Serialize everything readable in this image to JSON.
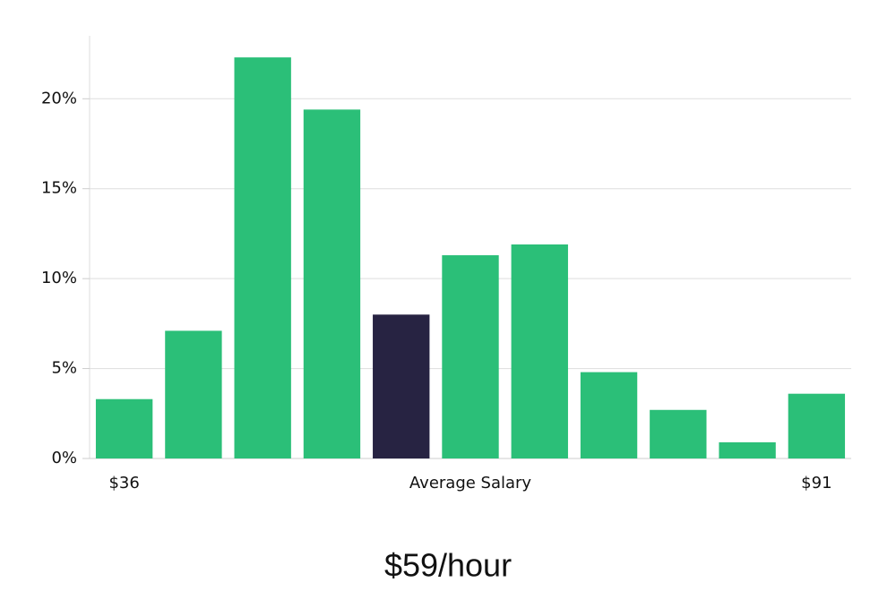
{
  "chart_data": {
    "type": "bar",
    "categories": [
      "$36",
      null,
      null,
      null,
      null,
      null,
      null,
      null,
      null,
      null,
      "$91"
    ],
    "values": [
      3.3,
      7.1,
      22.3,
      19.4,
      8.0,
      11.3,
      11.9,
      4.8,
      2.7,
      0.9,
      3.6
    ],
    "colors": [
      "#2bbf78",
      "#2bbf78",
      "#2bbf78",
      "#2bbf78",
      "#272342",
      "#2bbf78",
      "#2bbf78",
      "#2bbf78",
      "#2bbf78",
      "#2bbf78",
      "#2bbf78"
    ],
    "x_label": "Average Salary",
    "subtitle": "$59/hour",
    "ylim": [
      0,
      23.5
    ],
    "yticks": [
      {
        "value": 0,
        "label": "0%"
      },
      {
        "value": 5,
        "label": "5%"
      },
      {
        "value": 10,
        "label": "10%"
      },
      {
        "value": 15,
        "label": "15%"
      },
      {
        "value": 20,
        "label": "20%"
      }
    ],
    "grid": true
  }
}
